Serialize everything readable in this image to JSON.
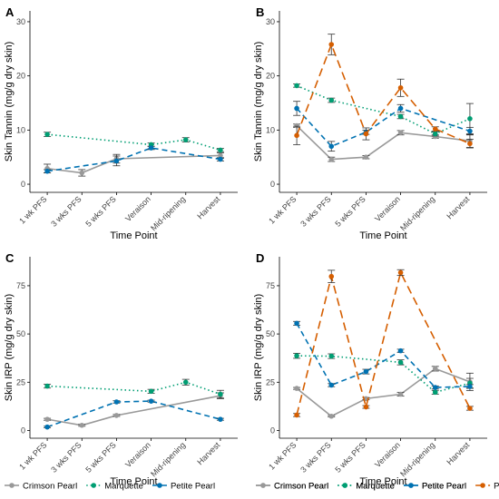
{
  "series_styles": [
    {
      "name": "Crimson Pearl",
      "color": "#999999",
      "dash": "solid"
    },
    {
      "name": "Marquette",
      "color": "#009E73",
      "dash": "dotted"
    },
    {
      "name": "Petite Pearl",
      "color": "#0072B2",
      "dash": "dashed"
    },
    {
      "name": "Pinot Noir",
      "color": "#D55E00",
      "dash": "longdash"
    }
  ],
  "chart_data": [
    {
      "type": "line",
      "panel": "A",
      "x": [
        "1 wk PFS",
        "3 wks PFS",
        "5 wks PFS",
        "Veraison",
        "Mid-ripening",
        "Harvest"
      ],
      "xlabel": "Time Point",
      "ylabel": "Skin Tannin (mg/g dry skin)",
      "ylim": [
        -1.5,
        32
      ],
      "yticks": [
        0,
        10,
        20,
        30
      ],
      "legend": [
        "Crimson Pearl",
        "Marquette",
        "Petite Pearl"
      ],
      "legend_position": "bottom",
      "series": [
        {
          "name": "Crimson Pearl",
          "values": [
            2.9,
            2.1,
            4.7,
            null,
            null,
            5.3
          ],
          "err": [
            0.8,
            0.6,
            0.8,
            null,
            null,
            0.5
          ]
        },
        {
          "name": "Marquette",
          "values": [
            9.2,
            null,
            null,
            7.3,
            8.2,
            6.3
          ],
          "err": [
            0.4,
            null,
            null,
            0.3,
            0.4,
            0.3
          ]
        },
        {
          "name": "Petite Pearl",
          "values": [
            2.4,
            null,
            4.3,
            6.7,
            null,
            4.6
          ],
          "err": [
            0.3,
            null,
            0.9,
            0.3,
            null,
            0.3
          ]
        }
      ]
    },
    {
      "type": "line",
      "panel": "B",
      "x": [
        "1 wk PFS",
        "3 wks PFS",
        "5 wks PFS",
        "Veraison",
        "Mid-ripening",
        "Harvest"
      ],
      "xlabel": "Time Point",
      "ylabel": "Skin Tannin (mg/g dry skin)",
      "ylim": [
        -1.5,
        32
      ],
      "yticks": [
        0,
        10,
        20,
        30
      ],
      "series": [
        {
          "name": "Crimson Pearl",
          "values": [
            10.8,
            4.6,
            5.0,
            9.5,
            8.8,
            8.0
          ],
          "err": [
            0.3,
            0.4,
            0.3,
            0.4,
            0.3,
            1.2
          ]
        },
        {
          "name": "Marquette",
          "values": [
            18.2,
            15.5,
            null,
            12.5,
            9.3,
            12.1
          ],
          "err": [
            0.3,
            0.4,
            null,
            0.4,
            0.4,
            2.8
          ]
        },
        {
          "name": "Petite Pearl",
          "values": [
            14.0,
            7.0,
            9.6,
            14.0,
            null,
            9.8
          ],
          "err": [
            1.3,
            0.9,
            0.4,
            0.7,
            null,
            0.7
          ]
        },
        {
          "name": "Pinot Noir",
          "values": [
            9.0,
            25.8,
            9.3,
            17.8,
            10.2,
            7.5
          ],
          "err": [
            1.7,
            1.9,
            1.1,
            1.6,
            0.4,
            0.8
          ]
        }
      ]
    },
    {
      "type": "line",
      "panel": "C",
      "x": [
        "1 wk PFS",
        "3 wks PFS",
        "5 wks PFS",
        "Veraison",
        "Mid-ripening",
        "Harvest"
      ],
      "xlabel": "Time Point",
      "ylabel": "Skin IRP (mg/g dry skin)",
      "ylim": [
        -4,
        90
      ],
      "yticks": [
        0,
        25,
        50,
        75
      ],
      "legend": [
        "Crimson Pearl",
        "Marquette",
        "Petite Pearl"
      ],
      "legend_position": "bottom",
      "series": [
        {
          "name": "Crimson Pearl",
          "values": [
            5.8,
            2.7,
            7.8,
            null,
            null,
            18.0
          ],
          "err": [
            0.5,
            0.5,
            0.5,
            null,
            null,
            1.5
          ]
        },
        {
          "name": "Marquette",
          "values": [
            23.0,
            null,
            null,
            20.3,
            25.0,
            18.8
          ],
          "err": [
            1.0,
            null,
            null,
            1.0,
            1.5,
            2.0
          ]
        },
        {
          "name": "Petite Pearl",
          "values": [
            1.8,
            null,
            14.8,
            15.2,
            null,
            5.8
          ],
          "err": [
            0.4,
            null,
            0.6,
            0.5,
            null,
            0.5
          ]
        }
      ]
    },
    {
      "type": "line",
      "panel": "D",
      "x": [
        "1 wk PFS",
        "3 wks PFS",
        "5 wks PFS",
        "Veraison",
        "Mid-ripening",
        "Harvest"
      ],
      "xlabel": "Time Point",
      "ylabel": "Skin IRP (mg/g dry skin)",
      "ylim": [
        -4,
        90
      ],
      "yticks": [
        0,
        25,
        50,
        75
      ],
      "legend": [
        "Crimson Pearl",
        "Marquette",
        "Petite Pearl",
        "Pinot Noir"
      ],
      "legend_position": "bottom",
      "series": [
        {
          "name": "Crimson Pearl",
          "values": [
            21.8,
            7.4,
            16.5,
            18.8,
            32.0,
            25.2
          ],
          "err": [
            0.5,
            0.4,
            0.6,
            1.0,
            1.2,
            4.5
          ]
        },
        {
          "name": "Marquette",
          "values": [
            38.7,
            38.5,
            null,
            35.3,
            19.8,
            24.5
          ],
          "err": [
            1.3,
            1.2,
            null,
            1.3,
            1.0,
            2.5
          ]
        },
        {
          "name": "Petite Pearl",
          "values": [
            55.5,
            23.5,
            30.5,
            41.3,
            22.3,
            22.8
          ],
          "err": [
            1.0,
            0.8,
            1.2,
            0.8,
            0.8,
            1.0
          ]
        },
        {
          "name": "Pinot Noir",
          "values": [
            8.0,
            79.8,
            12.2,
            81.8,
            null,
            11.5
          ],
          "err": [
            0.8,
            3.2,
            0.7,
            1.5,
            null,
            1.0
          ]
        }
      ]
    }
  ]
}
